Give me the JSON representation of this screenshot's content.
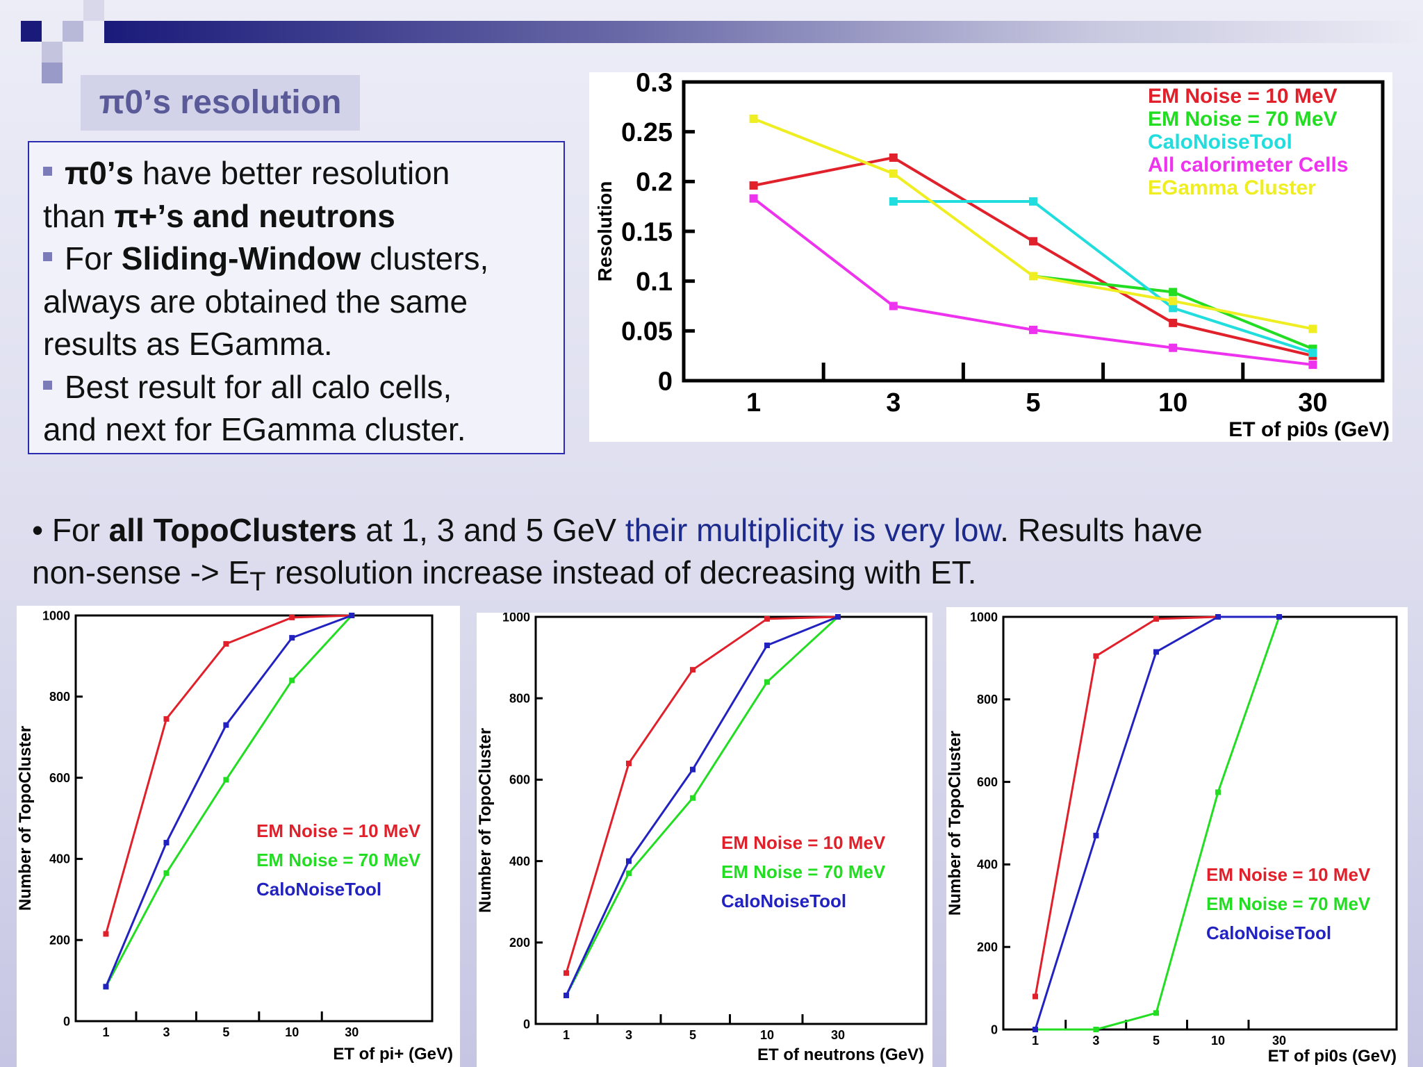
{
  "title": "π0’s resolution",
  "bullets": [
    {
      "b1": "π0’s",
      "t1": " have better resolution",
      "t2": " than ",
      "b2": "π+’s and neutrons"
    },
    {
      "t1": "For ",
      "b1": "Sliding-Window",
      "t2": " clusters,",
      "t3": "always are obtained the same",
      "t4": "results as EGamma."
    },
    {
      "t1": "Best result for all calo cells,",
      "t2": "and next for EGamma cluster."
    }
  ],
  "note": {
    "p1": "• For ",
    "b1": "all TopoClusters",
    "p2": " at 1, 3 and 5 GeV ",
    "hl": "their multiplicity is very low",
    "p3": ". Results have",
    "p4": "non-sense -> E",
    "sub": "T",
    "p5": " resolution increase instead of decreasing with ET."
  },
  "colors": {
    "red": "#e0202a",
    "green": "#22dd22",
    "cyan": "#22dddd",
    "magenta": "#ee33ee",
    "yellow": "#eeee22",
    "blue": "#2222c0"
  },
  "chart_data": [
    {
      "type": "line",
      "title": "",
      "xlabel": "ET of pi0s (GeV)",
      "ylabel": "Resolution",
      "categories": [
        "1",
        "3",
        "5",
        "10",
        "30"
      ],
      "ylim": [
        0,
        0.3
      ],
      "yticks": [
        "0",
        "0.05",
        "0.1",
        "0.15",
        "0.2",
        "0.25",
        "0.3"
      ],
      "grid": false,
      "legend": "top-right",
      "series": [
        {
          "name": "EM Noise = 10 MeV",
          "color": "#e0202a",
          "values": [
            0.196,
            0.224,
            0.14,
            0.058,
            0.025
          ]
        },
        {
          "name": "EM Noise = 70 MeV",
          "color": "#22dd22",
          "values": [
            null,
            null,
            0.105,
            0.089,
            0.032
          ]
        },
        {
          "name": "CaloNoiseTool",
          "color": "#22dddd",
          "values": [
            null,
            0.18,
            0.18,
            0.073,
            0.028
          ]
        },
        {
          "name": "All calorimeter Cells",
          "color": "#ee33ee",
          "values": [
            0.183,
            0.075,
            0.051,
            0.033,
            0.016
          ]
        },
        {
          "name": "EGamma Cluster",
          "color": "#eeee22",
          "values": [
            0.263,
            0.208,
            0.105,
            0.08,
            0.052
          ]
        }
      ]
    },
    {
      "type": "line",
      "title": "",
      "xlabel": "ET of pi+ (GeV)",
      "ylabel": "Number of TopoCluster",
      "categories": [
        "1",
        "3",
        "5",
        "10",
        "30"
      ],
      "ylim": [
        0,
        1000
      ],
      "yticks": [
        "0",
        "200",
        "400",
        "600",
        "800",
        "1000"
      ],
      "grid": false,
      "legend": "center-right",
      "series": [
        {
          "name": "EM Noise = 10 MeV",
          "color": "#e0202a",
          "values": [
            215,
            745,
            930,
            995,
            1000
          ]
        },
        {
          "name": "EM Noise = 70 MeV",
          "color": "#22dd22",
          "values": [
            85,
            365,
            595,
            840,
            1000
          ]
        },
        {
          "name": "CaloNoiseTool",
          "color": "#2222c0",
          "values": [
            85,
            440,
            730,
            945,
            1000
          ]
        }
      ]
    },
    {
      "type": "line",
      "title": "",
      "xlabel": "ET of neutrons (GeV)",
      "ylabel": "Number of TopoCluster",
      "categories": [
        "1",
        "3",
        "5",
        "10",
        "30"
      ],
      "ylim": [
        0,
        1000
      ],
      "yticks": [
        "0",
        "200",
        "400",
        "600",
        "800",
        "1000"
      ],
      "grid": false,
      "legend": "center-right",
      "series": [
        {
          "name": "EM Noise = 10 MeV",
          "color": "#e0202a",
          "values": [
            125,
            640,
            870,
            995,
            1000
          ]
        },
        {
          "name": "EM Noise = 70 MeV",
          "color": "#22dd22",
          "values": [
            70,
            370,
            555,
            840,
            1000
          ]
        },
        {
          "name": "CaloNoiseTool",
          "color": "#2222c0",
          "values": [
            70,
            400,
            625,
            930,
            1000
          ]
        }
      ]
    },
    {
      "type": "line",
      "title": "",
      "xlabel": "ET of pi0s (GeV)",
      "ylabel": "Number of TopoCluster",
      "categories": [
        "1",
        "3",
        "5",
        "10",
        "30"
      ],
      "ylim": [
        0,
        1000
      ],
      "yticks": [
        "0",
        "200",
        "400",
        "600",
        "800",
        "1000"
      ],
      "grid": false,
      "legend": "bottom-right",
      "series": [
        {
          "name": "EM Noise = 10 MeV",
          "color": "#e0202a",
          "values": [
            80,
            905,
            995,
            1000,
            1000
          ]
        },
        {
          "name": "EM Noise = 70 MeV",
          "color": "#22dd22",
          "values": [
            0,
            0,
            40,
            575,
            1000
          ]
        },
        {
          "name": "CaloNoiseTool",
          "color": "#2222c0",
          "values": [
            0,
            470,
            915,
            1000,
            1000
          ]
        }
      ]
    }
  ]
}
